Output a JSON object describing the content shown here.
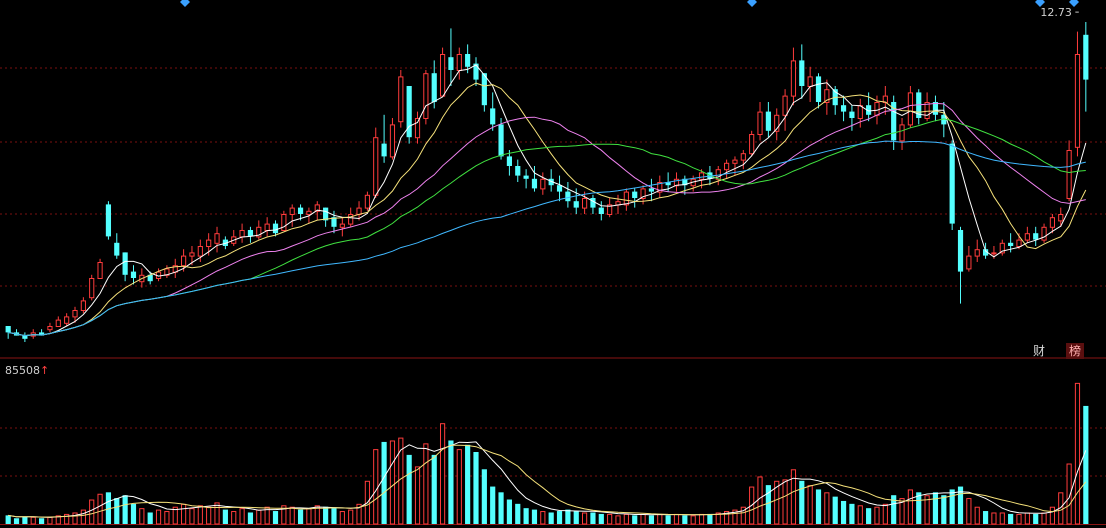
{
  "labels": {
    "max_price": "12.73",
    "volume_max": "85508",
    "volume_max_arrow": "↑",
    "badge_finance": "财",
    "badge_ranking": "榜"
  },
  "colors": {
    "background": "#000000",
    "up": "#ff3c3c",
    "down": "#54ffff",
    "grid": "#7a1010",
    "divider": "#8a1414",
    "ma5": "#ffffff",
    "ma10": "#f5e17a",
    "ma20": "#ee82ee",
    "ma30": "#40e040",
    "ma60": "#40b8ff",
    "marker": "#3aa0ff"
  },
  "chart_data": {
    "type": "candlestick",
    "panels": [
      "price",
      "volume"
    ],
    "price_max": 12.73,
    "volume_max": 85508,
    "grid": true,
    "overlays": [
      "MA5",
      "MA10",
      "MA20",
      "MA30",
      "MA60"
    ],
    "volume_overlays": [
      "MA5",
      "MA10"
    ],
    "candles_source": "approximate trace; high/low/open/close as fraction of price range, volume as fraction of max volume",
    "candles": [
      [
        0.05,
        0.01,
        0.05,
        0.03,
        0.06
      ],
      [
        0.04,
        0.02,
        0.03,
        0.02,
        0.04
      ],
      [
        0.03,
        0.0,
        0.02,
        0.01,
        0.05
      ],
      [
        0.04,
        0.01,
        0.02,
        0.03,
        0.05
      ],
      [
        0.04,
        0.02,
        0.03,
        0.02,
        0.04
      ],
      [
        0.06,
        0.03,
        0.04,
        0.05,
        0.05
      ],
      [
        0.08,
        0.05,
        0.05,
        0.07,
        0.06
      ],
      [
        0.09,
        0.05,
        0.06,
        0.08,
        0.07
      ],
      [
        0.11,
        0.06,
        0.08,
        0.1,
        0.08
      ],
      [
        0.14,
        0.09,
        0.1,
        0.13,
        0.1
      ],
      [
        0.21,
        0.13,
        0.14,
        0.2,
        0.17
      ],
      [
        0.26,
        0.2,
        0.2,
        0.25,
        0.21
      ],
      [
        0.44,
        0.32,
        0.43,
        0.33,
        0.22
      ],
      [
        0.34,
        0.26,
        0.31,
        0.27,
        0.18
      ],
      [
        0.28,
        0.19,
        0.28,
        0.21,
        0.2
      ],
      [
        0.24,
        0.18,
        0.22,
        0.2,
        0.14
      ],
      [
        0.23,
        0.17,
        0.19,
        0.21,
        0.11
      ],
      [
        0.22,
        0.18,
        0.21,
        0.19,
        0.08
      ],
      [
        0.23,
        0.19,
        0.2,
        0.22,
        0.1
      ],
      [
        0.24,
        0.2,
        0.21,
        0.23,
        0.09
      ],
      [
        0.26,
        0.2,
        0.22,
        0.24,
        0.12
      ],
      [
        0.29,
        0.22,
        0.24,
        0.27,
        0.14
      ],
      [
        0.3,
        0.24,
        0.27,
        0.28,
        0.11
      ],
      [
        0.32,
        0.25,
        0.27,
        0.3,
        0.13
      ],
      [
        0.34,
        0.27,
        0.3,
        0.32,
        0.12
      ],
      [
        0.36,
        0.28,
        0.31,
        0.34,
        0.15
      ],
      [
        0.33,
        0.29,
        0.32,
        0.3,
        0.1
      ],
      [
        0.35,
        0.3,
        0.31,
        0.33,
        0.09
      ],
      [
        0.37,
        0.31,
        0.33,
        0.35,
        0.11
      ],
      [
        0.36,
        0.31,
        0.35,
        0.33,
        0.08
      ],
      [
        0.38,
        0.32,
        0.33,
        0.36,
        0.1
      ],
      [
        0.39,
        0.33,
        0.35,
        0.37,
        0.12
      ],
      [
        0.38,
        0.33,
        0.37,
        0.34,
        0.09
      ],
      [
        0.41,
        0.35,
        0.35,
        0.4,
        0.13
      ],
      [
        0.43,
        0.36,
        0.4,
        0.42,
        0.12
      ],
      [
        0.43,
        0.38,
        0.42,
        0.4,
        0.1
      ],
      [
        0.42,
        0.37,
        0.4,
        0.41,
        0.11
      ],
      [
        0.44,
        0.38,
        0.41,
        0.43,
        0.13
      ],
      [
        0.42,
        0.36,
        0.42,
        0.38,
        0.12
      ],
      [
        0.41,
        0.34,
        0.39,
        0.36,
        0.11
      ],
      [
        0.39,
        0.33,
        0.36,
        0.37,
        0.09
      ],
      [
        0.42,
        0.36,
        0.37,
        0.4,
        0.1
      ],
      [
        0.44,
        0.38,
        0.4,
        0.42,
        0.14
      ],
      [
        0.47,
        0.41,
        0.42,
        0.46,
        0.3
      ],
      [
        0.67,
        0.45,
        0.46,
        0.64,
        0.52
      ],
      [
        0.71,
        0.56,
        0.62,
        0.58,
        0.57
      ],
      [
        0.7,
        0.57,
        0.58,
        0.68,
        0.58
      ],
      [
        0.85,
        0.67,
        0.69,
        0.83,
        0.6
      ],
      [
        0.8,
        0.62,
        0.8,
        0.64,
        0.48
      ],
      [
        0.72,
        0.62,
        0.64,
        0.7,
        0.4
      ],
      [
        0.85,
        0.68,
        0.7,
        0.84,
        0.56
      ],
      [
        0.88,
        0.73,
        0.84,
        0.75,
        0.48
      ],
      [
        0.92,
        0.77,
        0.77,
        0.9,
        0.7
      ],
      [
        0.98,
        0.8,
        0.89,
        0.85,
        0.58
      ],
      [
        0.92,
        0.82,
        0.85,
        0.9,
        0.52
      ],
      [
        0.93,
        0.84,
        0.9,
        0.86,
        0.55
      ],
      [
        0.89,
        0.8,
        0.87,
        0.82,
        0.5
      ],
      [
        0.84,
        0.72,
        0.84,
        0.74,
        0.38
      ],
      [
        0.78,
        0.66,
        0.73,
        0.68,
        0.26
      ],
      [
        0.7,
        0.57,
        0.68,
        0.58,
        0.22
      ],
      [
        0.6,
        0.52,
        0.58,
        0.55,
        0.17
      ],
      [
        0.57,
        0.5,
        0.55,
        0.52,
        0.14
      ],
      [
        0.54,
        0.48,
        0.52,
        0.51,
        0.11
      ],
      [
        0.55,
        0.47,
        0.51,
        0.48,
        0.1
      ],
      [
        0.53,
        0.46,
        0.48,
        0.51,
        0.09
      ],
      [
        0.54,
        0.47,
        0.51,
        0.49,
        0.08
      ],
      [
        0.52,
        0.44,
        0.49,
        0.47,
        0.09
      ],
      [
        0.5,
        0.42,
        0.47,
        0.44,
        0.1
      ],
      [
        0.48,
        0.4,
        0.44,
        0.42,
        0.09
      ],
      [
        0.47,
        0.4,
        0.42,
        0.45,
        0.08
      ],
      [
        0.46,
        0.4,
        0.45,
        0.42,
        0.08
      ],
      [
        0.44,
        0.38,
        0.42,
        0.4,
        0.07
      ],
      [
        0.45,
        0.39,
        0.4,
        0.43,
        0.07
      ],
      [
        0.46,
        0.4,
        0.43,
        0.44,
        0.06
      ],
      [
        0.48,
        0.41,
        0.43,
        0.47,
        0.07
      ],
      [
        0.48,
        0.42,
        0.47,
        0.45,
        0.06
      ],
      [
        0.49,
        0.43,
        0.45,
        0.48,
        0.07
      ],
      [
        0.51,
        0.44,
        0.48,
        0.47,
        0.06
      ],
      [
        0.52,
        0.45,
        0.47,
        0.5,
        0.07
      ],
      [
        0.53,
        0.47,
        0.5,
        0.49,
        0.06
      ],
      [
        0.53,
        0.47,
        0.49,
        0.51,
        0.07
      ],
      [
        0.52,
        0.46,
        0.51,
        0.49,
        0.06
      ],
      [
        0.52,
        0.47,
        0.49,
        0.51,
        0.06
      ],
      [
        0.54,
        0.48,
        0.51,
        0.53,
        0.07
      ],
      [
        0.55,
        0.49,
        0.53,
        0.51,
        0.07
      ],
      [
        0.55,
        0.49,
        0.51,
        0.54,
        0.08
      ],
      [
        0.57,
        0.51,
        0.54,
        0.56,
        0.09
      ],
      [
        0.58,
        0.52,
        0.56,
        0.57,
        0.1
      ],
      [
        0.6,
        0.54,
        0.57,
        0.59,
        0.12
      ],
      [
        0.66,
        0.58,
        0.59,
        0.65,
        0.26
      ],
      [
        0.75,
        0.63,
        0.65,
        0.72,
        0.33
      ],
      [
        0.75,
        0.64,
        0.72,
        0.66,
        0.27
      ],
      [
        0.73,
        0.63,
        0.66,
        0.71,
        0.3
      ],
      [
        0.79,
        0.66,
        0.71,
        0.77,
        0.31
      ],
      [
        0.92,
        0.74,
        0.77,
        0.88,
        0.38
      ],
      [
        0.93,
        0.76,
        0.88,
        0.8,
        0.3
      ],
      [
        0.86,
        0.75,
        0.8,
        0.83,
        0.27
      ],
      [
        0.84,
        0.73,
        0.83,
        0.75,
        0.24
      ],
      [
        0.82,
        0.71,
        0.75,
        0.79,
        0.22
      ],
      [
        0.8,
        0.71,
        0.79,
        0.74,
        0.19
      ],
      [
        0.77,
        0.69,
        0.74,
        0.72,
        0.16
      ],
      [
        0.74,
        0.66,
        0.72,
        0.7,
        0.14
      ],
      [
        0.76,
        0.67,
        0.7,
        0.74,
        0.13
      ],
      [
        0.78,
        0.69,
        0.74,
        0.71,
        0.11
      ],
      [
        0.77,
        0.68,
        0.71,
        0.75,
        0.12
      ],
      [
        0.8,
        0.71,
        0.75,
        0.77,
        0.14
      ],
      [
        0.77,
        0.6,
        0.75,
        0.63,
        0.2
      ],
      [
        0.7,
        0.6,
        0.63,
        0.68,
        0.18
      ],
      [
        0.8,
        0.67,
        0.68,
        0.78,
        0.24
      ],
      [
        0.79,
        0.68,
        0.78,
        0.7,
        0.22
      ],
      [
        0.78,
        0.69,
        0.7,
        0.75,
        0.2
      ],
      [
        0.77,
        0.69,
        0.75,
        0.71,
        0.22
      ],
      [
        0.75,
        0.64,
        0.71,
        0.68,
        0.2
      ],
      [
        0.63,
        0.35,
        0.62,
        0.37,
        0.24
      ],
      [
        0.36,
        0.12,
        0.35,
        0.22,
        0.26
      ],
      [
        0.3,
        0.22,
        0.23,
        0.27,
        0.18
      ],
      [
        0.32,
        0.25,
        0.27,
        0.29,
        0.12
      ],
      [
        0.31,
        0.26,
        0.29,
        0.27,
        0.09
      ],
      [
        0.3,
        0.26,
        0.28,
        0.28,
        0.08
      ],
      [
        0.32,
        0.27,
        0.28,
        0.31,
        0.08
      ],
      [
        0.34,
        0.28,
        0.31,
        0.3,
        0.07
      ],
      [
        0.34,
        0.29,
        0.3,
        0.32,
        0.07
      ],
      [
        0.36,
        0.31,
        0.32,
        0.34,
        0.08
      ],
      [
        0.36,
        0.3,
        0.34,
        0.32,
        0.07
      ],
      [
        0.37,
        0.31,
        0.32,
        0.36,
        0.08
      ],
      [
        0.4,
        0.34,
        0.36,
        0.39,
        0.12
      ],
      [
        0.42,
        0.36,
        0.38,
        0.4,
        0.22
      ],
      [
        0.63,
        0.44,
        0.45,
        0.6,
        0.42
      ],
      [
        0.97,
        0.58,
        0.61,
        0.9,
        0.98
      ],
      [
        1.0,
        0.72,
        0.96,
        0.82,
        0.82
      ]
    ]
  }
}
